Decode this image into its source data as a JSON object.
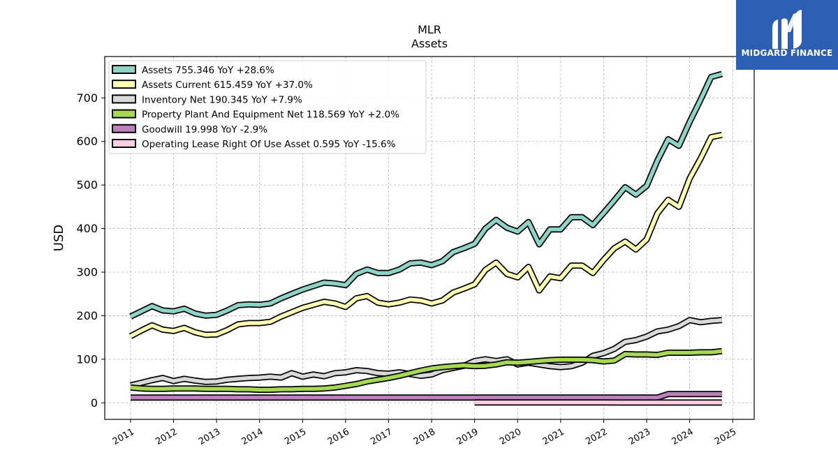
{
  "chart_data": {
    "type": "line",
    "title": "MLR",
    "subtitle": "Assets",
    "xlabel": "",
    "ylabel": "USD",
    "xlim": [
      2010.4,
      2025.5
    ],
    "ylim": [
      -38,
      795
    ],
    "x_ticks": [
      "2011",
      "2012",
      "2013",
      "2014",
      "2015",
      "2016",
      "2017",
      "2018",
      "2019",
      "2020",
      "2021",
      "2022",
      "2023",
      "2024",
      "2025"
    ],
    "y_ticks": [
      0,
      100,
      200,
      300,
      400,
      500,
      600,
      700
    ],
    "grid": true,
    "legend_position": "top-left",
    "series": [
      {
        "name": "Assets  755.346 YoY +28.6%",
        "color": "#8dd3c7",
        "points": [
          [
            2011.0,
            198
          ],
          [
            2011.25,
            210
          ],
          [
            2011.5,
            222
          ],
          [
            2011.75,
            212
          ],
          [
            2012.0,
            210
          ],
          [
            2012.25,
            216
          ],
          [
            2012.5,
            205
          ],
          [
            2012.75,
            200
          ],
          [
            2013.0,
            202
          ],
          [
            2013.25,
            212
          ],
          [
            2013.5,
            224
          ],
          [
            2013.75,
            226
          ],
          [
            2014.0,
            225
          ],
          [
            2014.25,
            228
          ],
          [
            2014.5,
            240
          ],
          [
            2014.75,
            250
          ],
          [
            2015.0,
            260
          ],
          [
            2015.25,
            268
          ],
          [
            2015.5,
            276
          ],
          [
            2015.75,
            274
          ],
          [
            2016.0,
            270
          ],
          [
            2016.25,
            296
          ],
          [
            2016.5,
            306
          ],
          [
            2016.75,
            298
          ],
          [
            2017.0,
            298
          ],
          [
            2017.25,
            306
          ],
          [
            2017.5,
            320
          ],
          [
            2017.75,
            322
          ],
          [
            2018.0,
            316
          ],
          [
            2018.25,
            325
          ],
          [
            2018.5,
            346
          ],
          [
            2018.75,
            355
          ],
          [
            2019.0,
            365
          ],
          [
            2019.25,
            400
          ],
          [
            2019.5,
            420
          ],
          [
            2019.75,
            402
          ],
          [
            2020.0,
            393
          ],
          [
            2020.25,
            415
          ],
          [
            2020.5,
            364
          ],
          [
            2020.75,
            398
          ],
          [
            2021.0,
            398
          ],
          [
            2021.25,
            426
          ],
          [
            2021.5,
            426
          ],
          [
            2021.75,
            408
          ],
          [
            2022.0,
            436
          ],
          [
            2022.25,
            465
          ],
          [
            2022.5,
            495
          ],
          [
            2022.75,
            478
          ],
          [
            2023.0,
            498
          ],
          [
            2023.25,
            556
          ],
          [
            2023.5,
            605
          ],
          [
            2023.75,
            590
          ],
          [
            2024.0,
            645
          ],
          [
            2024.25,
            695
          ],
          [
            2024.5,
            748
          ],
          [
            2024.75,
            755
          ]
        ]
      },
      {
        "name": "Assets Current  615.459 YoY +37.0%",
        "color": "#ffffb3",
        "points": [
          [
            2011.0,
            153
          ],
          [
            2011.25,
            166
          ],
          [
            2011.5,
            178
          ],
          [
            2011.75,
            168
          ],
          [
            2012.0,
            165
          ],
          [
            2012.25,
            172
          ],
          [
            2012.5,
            162
          ],
          [
            2012.75,
            156
          ],
          [
            2013.0,
            157
          ],
          [
            2013.25,
            167
          ],
          [
            2013.5,
            180
          ],
          [
            2013.75,
            183
          ],
          [
            2014.0,
            183
          ],
          [
            2014.25,
            186
          ],
          [
            2014.5,
            198
          ],
          [
            2014.75,
            208
          ],
          [
            2015.0,
            218
          ],
          [
            2015.25,
            225
          ],
          [
            2015.5,
            232
          ],
          [
            2015.75,
            228
          ],
          [
            2016.0,
            220
          ],
          [
            2016.25,
            240
          ],
          [
            2016.5,
            245
          ],
          [
            2016.75,
            230
          ],
          [
            2017.0,
            226
          ],
          [
            2017.25,
            230
          ],
          [
            2017.5,
            237
          ],
          [
            2017.75,
            235
          ],
          [
            2018.0,
            228
          ],
          [
            2018.25,
            235
          ],
          [
            2018.5,
            253
          ],
          [
            2018.75,
            262
          ],
          [
            2019.0,
            272
          ],
          [
            2019.25,
            305
          ],
          [
            2019.5,
            322
          ],
          [
            2019.75,
            296
          ],
          [
            2020.0,
            288
          ],
          [
            2020.25,
            312
          ],
          [
            2020.5,
            258
          ],
          [
            2020.75,
            290
          ],
          [
            2021.0,
            286
          ],
          [
            2021.25,
            315
          ],
          [
            2021.5,
            315
          ],
          [
            2021.75,
            298
          ],
          [
            2022.0,
            328
          ],
          [
            2022.25,
            355
          ],
          [
            2022.5,
            370
          ],
          [
            2022.75,
            352
          ],
          [
            2023.0,
            375
          ],
          [
            2023.25,
            435
          ],
          [
            2023.5,
            466
          ],
          [
            2023.75,
            450
          ],
          [
            2024.0,
            515
          ],
          [
            2024.25,
            560
          ],
          [
            2024.5,
            610
          ],
          [
            2024.75,
            615
          ]
        ]
      },
      {
        "name": "Inventory Net  190.345 YoY +7.9%",
        "color": "#d9d9d9",
        "points": [
          [
            2011.0,
            40
          ],
          [
            2011.25,
            46
          ],
          [
            2011.5,
            52
          ],
          [
            2011.75,
            57
          ],
          [
            2012.0,
            50
          ],
          [
            2012.25,
            55
          ],
          [
            2012.5,
            51
          ],
          [
            2012.75,
            48
          ],
          [
            2013.0,
            49
          ],
          [
            2013.25,
            53
          ],
          [
            2013.5,
            55
          ],
          [
            2013.75,
            57
          ],
          [
            2014.0,
            58
          ],
          [
            2014.25,
            60
          ],
          [
            2014.5,
            58
          ],
          [
            2014.75,
            68
          ],
          [
            2015.0,
            60
          ],
          [
            2015.25,
            65
          ],
          [
            2015.5,
            61
          ],
          [
            2015.75,
            68
          ],
          [
            2016.0,
            70
          ],
          [
            2016.25,
            75
          ],
          [
            2016.5,
            73
          ],
          [
            2016.75,
            68
          ],
          [
            2017.0,
            67
          ],
          [
            2017.25,
            70
          ],
          [
            2017.5,
            66
          ],
          [
            2017.75,
            62
          ],
          [
            2018.0,
            65
          ],
          [
            2018.25,
            75
          ],
          [
            2018.5,
            80
          ],
          [
            2018.75,
            85
          ],
          [
            2019.0,
            96
          ],
          [
            2019.25,
            100
          ],
          [
            2019.5,
            96
          ],
          [
            2019.75,
            100
          ],
          [
            2020.0,
            88
          ],
          [
            2020.25,
            92
          ],
          [
            2020.5,
            88
          ],
          [
            2020.75,
            84
          ],
          [
            2021.0,
            82
          ],
          [
            2021.25,
            84
          ],
          [
            2021.5,
            92
          ],
          [
            2021.75,
            108
          ],
          [
            2022.0,
            114
          ],
          [
            2022.25,
            124
          ],
          [
            2022.5,
            140
          ],
          [
            2022.75,
            144
          ],
          [
            2023.0,
            152
          ],
          [
            2023.25,
            164
          ],
          [
            2023.5,
            168
          ],
          [
            2023.75,
            176
          ],
          [
            2024.0,
            190
          ],
          [
            2024.25,
            185
          ],
          [
            2024.5,
            188
          ],
          [
            2024.75,
            190
          ]
        ]
      },
      {
        "name": "Property Plant And Equipment Net  118.569 YoY +2.0%",
        "color": "#a6d854",
        "points": [
          [
            2011.0,
            35
          ],
          [
            2011.25,
            33
          ],
          [
            2011.5,
            32
          ],
          [
            2011.75,
            32
          ],
          [
            2012.0,
            33
          ],
          [
            2012.25,
            33
          ],
          [
            2012.5,
            33
          ],
          [
            2012.75,
            32
          ],
          [
            2013.0,
            32
          ],
          [
            2013.25,
            32
          ],
          [
            2013.5,
            31
          ],
          [
            2013.75,
            31
          ],
          [
            2014.0,
            30
          ],
          [
            2014.25,
            30
          ],
          [
            2014.5,
            31
          ],
          [
            2014.75,
            31
          ],
          [
            2015.0,
            32
          ],
          [
            2015.25,
            32
          ],
          [
            2015.5,
            33
          ],
          [
            2015.75,
            35
          ],
          [
            2016.0,
            39
          ],
          [
            2016.25,
            43
          ],
          [
            2016.5,
            49
          ],
          [
            2016.75,
            53
          ],
          [
            2017.0,
            57
          ],
          [
            2017.25,
            62
          ],
          [
            2017.5,
            68
          ],
          [
            2017.75,
            74
          ],
          [
            2018.0,
            79
          ],
          [
            2018.25,
            82
          ],
          [
            2018.5,
            84
          ],
          [
            2018.75,
            86
          ],
          [
            2019.0,
            84
          ],
          [
            2019.25,
            85
          ],
          [
            2019.5,
            88
          ],
          [
            2019.75,
            93
          ],
          [
            2020.0,
            92
          ],
          [
            2020.25,
            94
          ],
          [
            2020.5,
            96
          ],
          [
            2020.75,
            98
          ],
          [
            2021.0,
            99
          ],
          [
            2021.25,
            99
          ],
          [
            2021.5,
            99
          ],
          [
            2021.75,
            98
          ],
          [
            2022.0,
            95
          ],
          [
            2022.25,
            97
          ],
          [
            2022.5,
            112
          ],
          [
            2022.75,
            111
          ],
          [
            2023.0,
            111
          ],
          [
            2023.25,
            110
          ],
          [
            2023.5,
            115
          ],
          [
            2023.75,
            115
          ],
          [
            2024.0,
            115
          ],
          [
            2024.25,
            116
          ],
          [
            2024.5,
            116
          ],
          [
            2024.75,
            118.6
          ]
        ]
      },
      {
        "name": "Goodwill  19.998 YoY -2.9%",
        "color": "#bc80bd",
        "points": [
          [
            2011.0,
            12
          ],
          [
            2023.25,
            12
          ],
          [
            2023.5,
            20
          ],
          [
            2024.0,
            20
          ],
          [
            2024.75,
            20
          ]
        ]
      },
      {
        "name": "Operating Lease Right Of Use Asset  0.595 YoY -15.6%",
        "color": "#fccde5",
        "points": [
          [
            2019.0,
            1
          ],
          [
            2020.0,
            0.8
          ],
          [
            2021.0,
            0.7
          ],
          [
            2022.0,
            0.7
          ],
          [
            2023.0,
            0.65
          ],
          [
            2024.0,
            0.6
          ],
          [
            2024.75,
            0.595
          ]
        ]
      }
    ]
  },
  "brand": {
    "name": "MIDGARD FINANCE",
    "bg_color": "#2c5fb3"
  }
}
